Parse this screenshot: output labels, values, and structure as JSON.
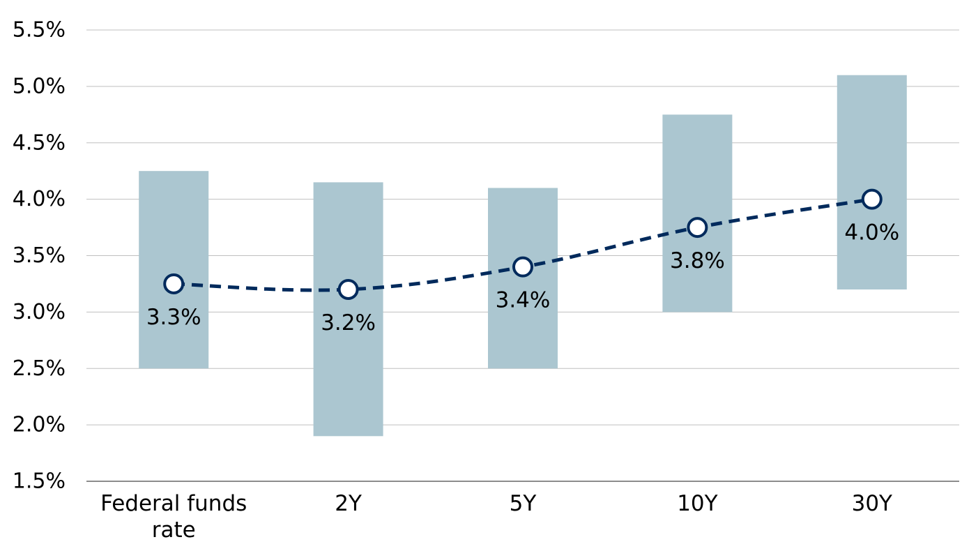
{
  "chart_data": {
    "type": "bar",
    "subtype": "floating-range-with-line",
    "title": "",
    "xlabel": "",
    "ylabel": "",
    "ylim": [
      1.5,
      5.5
    ],
    "y_ticks": [
      "1.5%",
      "2.0%",
      "2.5%",
      "3.0%",
      "3.5%",
      "4.0%",
      "4.5%",
      "5.0%",
      "5.5%"
    ],
    "y_tick_values": [
      1.5,
      2.0,
      2.5,
      3.0,
      3.5,
      4.0,
      4.5,
      5.0,
      5.5
    ],
    "grid": true,
    "categories": [
      {
        "lines": [
          "Federal funds",
          "rate"
        ]
      },
      {
        "lines": [
          "2Y"
        ]
      },
      {
        "lines": [
          "5Y"
        ]
      },
      {
        "lines": [
          "10Y"
        ]
      },
      {
        "lines": [
          "30Y"
        ]
      }
    ],
    "range_low": [
      2.5,
      1.9,
      2.5,
      3.0,
      3.2
    ],
    "range_high": [
      4.25,
      4.15,
      4.1,
      4.75,
      5.1
    ],
    "values": [
      3.25,
      3.2,
      3.4,
      3.75,
      4.0
    ],
    "labels": [
      "3.3%",
      "3.2%",
      "3.4%",
      "3.8%",
      "4.0%"
    ],
    "colors": {
      "range": "#abc6d0",
      "line": "#002a5c",
      "marker_fill": "#ffffff",
      "grid": "#bfbfbf",
      "axis": "#8c8c8c"
    }
  }
}
